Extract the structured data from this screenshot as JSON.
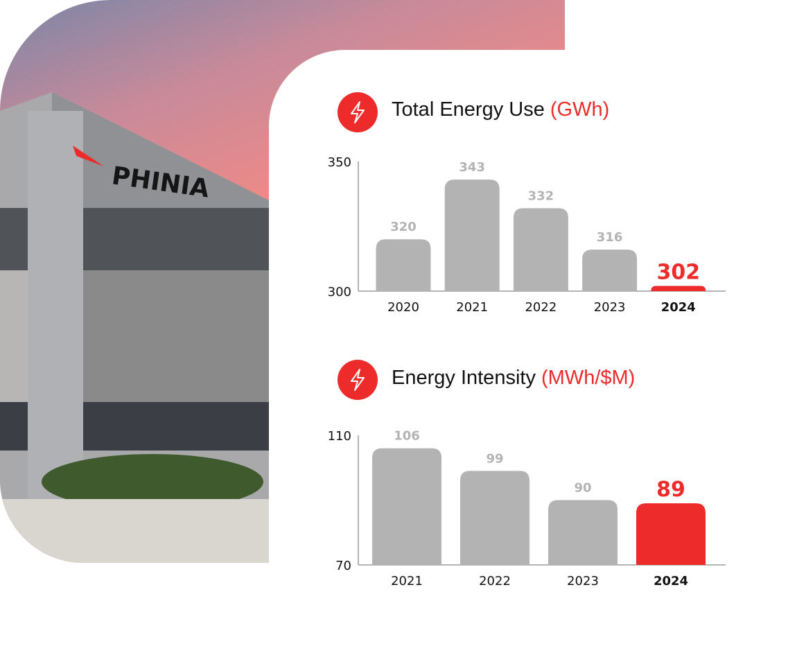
{
  "photo": {
    "sign": "PHINIA"
  },
  "chart_data": [
    {
      "type": "bar",
      "title": "Total Energy Use",
      "unit": "(GWh)",
      "categories": [
        "2020",
        "2021",
        "2022",
        "2023",
        "2024"
      ],
      "values": [
        320,
        343,
        332,
        316,
        302
      ],
      "value_labels": [
        "320",
        "343",
        "332",
        "316",
        "302"
      ],
      "ylim": [
        300,
        350
      ],
      "yticks": [
        "300",
        "350"
      ],
      "highlight": "2024",
      "colors": {
        "bar": "#b3b3b3",
        "highlight": "#ee2b2b",
        "label": "#b3b3b3"
      },
      "grid": false
    },
    {
      "type": "bar",
      "title": "Energy Intensity",
      "unit": "(MWh/$M)",
      "categories": [
        "2021",
        "2022",
        "2023",
        "2024"
      ],
      "values": [
        106,
        99,
        90,
        89
      ],
      "value_labels": [
        "106",
        "99",
        "90",
        "89"
      ],
      "ylim": [
        70,
        110
      ],
      "yticks": [
        "70",
        "110"
      ],
      "highlight": "2024",
      "colors": {
        "bar": "#b3b3b3",
        "highlight": "#ee2b2b",
        "label": "#b3b3b3"
      },
      "grid": false
    }
  ],
  "icons": [
    "lightning-icon"
  ]
}
